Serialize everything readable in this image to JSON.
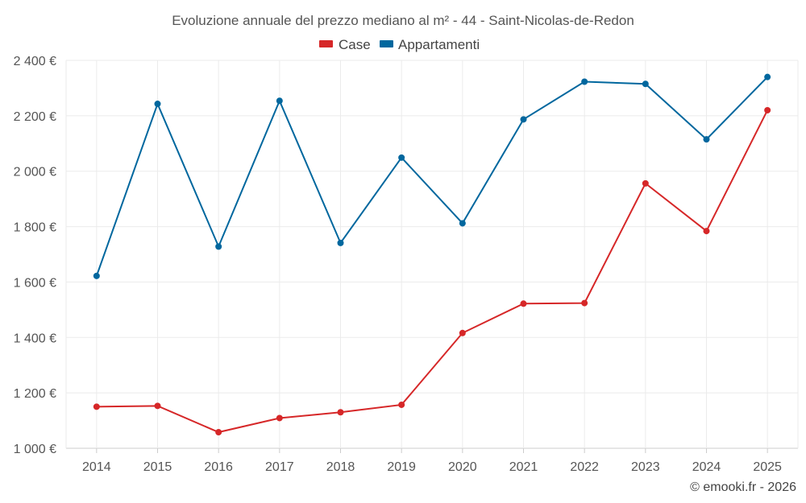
{
  "chart_data": {
    "type": "line",
    "title": "Evoluzione annuale del prezzo mediano al m² - 44 - Saint-Nicolas-de-Redon",
    "categories": [
      "2014",
      "2015",
      "2016",
      "2017",
      "2018",
      "2019",
      "2020",
      "2021",
      "2022",
      "2023",
      "2024",
      "2025"
    ],
    "series": [
      {
        "name": "Case",
        "color": "#d62728",
        "values": [
          1150,
          1153,
          1058,
          1109,
          1130,
          1157,
          1416,
          1522,
          1524,
          1956,
          1784,
          2220
        ]
      },
      {
        "name": "Appartamenti",
        "color": "#00679e",
        "values": [
          1622,
          2243,
          1728,
          2254,
          1741,
          2049,
          1812,
          2187,
          2323,
          2315,
          2115,
          2340
        ]
      }
    ],
    "ylim": [
      1000,
      2400
    ],
    "yticks": [
      1000,
      1200,
      1400,
      1600,
      1800,
      2000,
      2200,
      2400
    ],
    "ytick_labels": [
      "1 000 €",
      "1 200 €",
      "1 400 €",
      "1 600 €",
      "1 800 €",
      "2 000 €",
      "2 200 €",
      "2 400 €"
    ],
    "legend_position": "top-center",
    "grid": true
  },
  "credit": "© emooki.fr - 2026"
}
